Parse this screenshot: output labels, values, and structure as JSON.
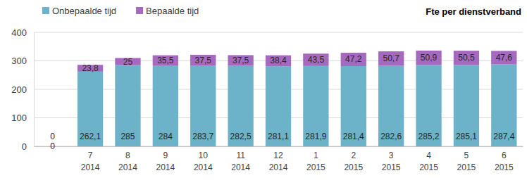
{
  "chart_data": {
    "type": "bar",
    "title": "Fte per dienstverband",
    "stacked": true,
    "data_labels": true,
    "grid": true,
    "legend": "top-left",
    "categories": [
      null,
      "7\n2014",
      "8\n2014",
      "9\n2014",
      "10\n2014",
      "11\n2014",
      "12\n2014",
      "1\n2015",
      "2\n2015",
      "3\n2015",
      "4\n2015",
      "5\n2015",
      "6\n2015"
    ],
    "series": [
      {
        "name": "Onbepaalde tijd",
        "color": "#6cb2c8",
        "values": [
          0,
          262.1,
          285,
          284,
          283.7,
          282.5,
          281.1,
          281.9,
          281.4,
          282.6,
          285.2,
          285.1,
          287.4
        ],
        "value_labels": [
          "0",
          "262,1",
          "285",
          "284",
          "283,7",
          "282,5",
          "281,1",
          "281,9",
          "281,4",
          "282,6",
          "285,2",
          "285,1",
          "287,4"
        ]
      },
      {
        "name": "Bepaalde tijd",
        "color": "#a569c0",
        "values": [
          0,
          23.8,
          25,
          35.5,
          37.5,
          37.5,
          38.4,
          43.5,
          47.2,
          50.7,
          50.9,
          50.5,
          47.6
        ],
        "value_labels": [
          "0",
          "23,8",
          "25",
          "35,5",
          "37,5",
          "37,5",
          "38,4",
          "43,5",
          "47,2",
          "50,7",
          "50,9",
          "50,5",
          "47,6"
        ]
      }
    ],
    "ylim": [
      0,
      400
    ],
    "yticks": [
      0,
      100,
      200,
      300,
      400
    ]
  }
}
